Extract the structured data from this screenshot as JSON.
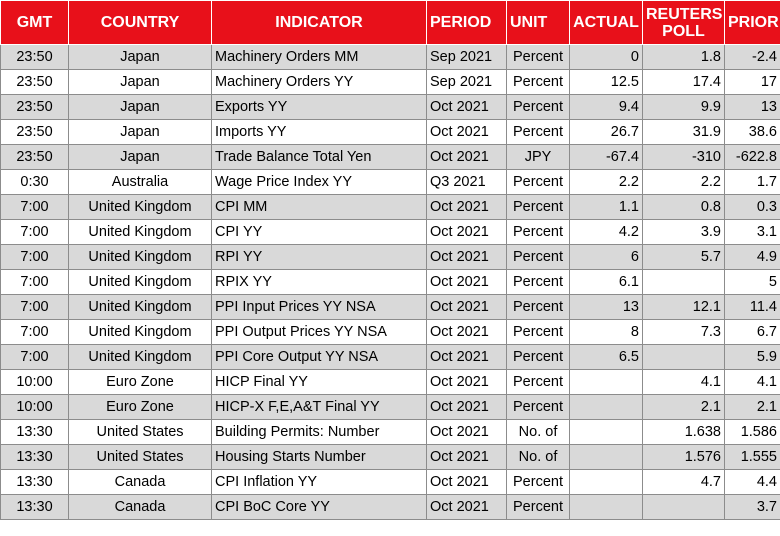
{
  "headers": {
    "gmt": "GMT",
    "country": "COUNTRY",
    "indicator": "INDICATOR",
    "period": "PERIOD",
    "unit": "UNIT",
    "actual": "ACTUAL",
    "poll_line1": "REUTERS",
    "poll_line2": "POLL",
    "prior": "PRIOR"
  },
  "colors": {
    "header_bg": "#e8101a",
    "header_text": "#ffffff",
    "row_alt_bg": "#d9d9d9"
  },
  "rows": [
    {
      "gmt": "23:50",
      "country": "Japan",
      "indicator": "Machinery Orders MM",
      "period": "Sep 2021",
      "unit": "Percent",
      "actual": "0",
      "poll": "1.8",
      "prior": "-2.4"
    },
    {
      "gmt": "23:50",
      "country": "Japan",
      "indicator": "Machinery Orders YY",
      "period": "Sep 2021",
      "unit": "Percent",
      "actual": "12.5",
      "poll": "17.4",
      "prior": "17"
    },
    {
      "gmt": "23:50",
      "country": "Japan",
      "indicator": "Exports YY",
      "period": "Oct 2021",
      "unit": "Percent",
      "actual": "9.4",
      "poll": "9.9",
      "prior": "13"
    },
    {
      "gmt": "23:50",
      "country": "Japan",
      "indicator": "Imports YY",
      "period": "Oct 2021",
      "unit": "Percent",
      "actual": "26.7",
      "poll": "31.9",
      "prior": "38.6"
    },
    {
      "gmt": "23:50",
      "country": "Japan",
      "indicator": "Trade Balance Total Yen",
      "period": "Oct 2021",
      "unit": "JPY",
      "actual": "-67.4",
      "poll": "-310",
      "prior": "-622.8"
    },
    {
      "gmt": "0:30",
      "country": "Australia",
      "indicator": "Wage Price Index YY",
      "period": "Q3 2021",
      "unit": "Percent",
      "actual": "2.2",
      "poll": "2.2",
      "prior": "1.7"
    },
    {
      "gmt": "7:00",
      "country": "United Kingdom",
      "indicator": "CPI MM",
      "period": "Oct 2021",
      "unit": "Percent",
      "actual": "1.1",
      "poll": "0.8",
      "prior": "0.3"
    },
    {
      "gmt": "7:00",
      "country": "United Kingdom",
      "indicator": "CPI YY",
      "period": "Oct 2021",
      "unit": "Percent",
      "actual": "4.2",
      "poll": "3.9",
      "prior": "3.1"
    },
    {
      "gmt": "7:00",
      "country": "United Kingdom",
      "indicator": "RPI YY",
      "period": "Oct 2021",
      "unit": "Percent",
      "actual": "6",
      "poll": "5.7",
      "prior": "4.9"
    },
    {
      "gmt": "7:00",
      "country": "United Kingdom",
      "indicator": "RPIX YY",
      "period": "Oct 2021",
      "unit": "Percent",
      "actual": "6.1",
      "poll": "",
      "prior": "5"
    },
    {
      "gmt": "7:00",
      "country": "United Kingdom",
      "indicator": "PPI Input Prices YY NSA",
      "period": "Oct 2021",
      "unit": "Percent",
      "actual": "13",
      "poll": "12.1",
      "prior": "11.4"
    },
    {
      "gmt": "7:00",
      "country": "United Kingdom",
      "indicator": "PPI Output Prices YY NSA",
      "period": "Oct 2021",
      "unit": "Percent",
      "actual": "8",
      "poll": "7.3",
      "prior": "6.7"
    },
    {
      "gmt": "7:00",
      "country": "United Kingdom",
      "indicator": "PPI Core Output YY NSA",
      "period": "Oct 2021",
      "unit": "Percent",
      "actual": "6.5",
      "poll": "",
      "prior": "5.9"
    },
    {
      "gmt": "10:00",
      "country": "Euro Zone",
      "indicator": "HICP Final YY",
      "period": "Oct 2021",
      "unit": "Percent",
      "actual": "",
      "poll": "4.1",
      "prior": "4.1"
    },
    {
      "gmt": "10:00",
      "country": "Euro Zone",
      "indicator": "HICP-X F,E,A&T Final YY",
      "period": "Oct 2021",
      "unit": "Percent",
      "actual": "",
      "poll": "2.1",
      "prior": "2.1"
    },
    {
      "gmt": "13:30",
      "country": "United States",
      "indicator": "Building Permits: Number",
      "period": "Oct 2021",
      "unit": "No. of",
      "actual": "",
      "poll": "1.638",
      "prior": "1.586"
    },
    {
      "gmt": "13:30",
      "country": "United States",
      "indicator": "Housing Starts Number",
      "period": "Oct 2021",
      "unit": "No. of",
      "actual": "",
      "poll": "1.576",
      "prior": "1.555"
    },
    {
      "gmt": "13:30",
      "country": "Canada",
      "indicator": "CPI Inflation YY",
      "period": "Oct 2021",
      "unit": "Percent",
      "actual": "",
      "poll": "4.7",
      "prior": "4.4"
    },
    {
      "gmt": "13:30",
      "country": "Canada",
      "indicator": "CPI BoC Core YY",
      "period": "Oct 2021",
      "unit": "Percent",
      "actual": "",
      "poll": "",
      "prior": "3.7"
    }
  ]
}
